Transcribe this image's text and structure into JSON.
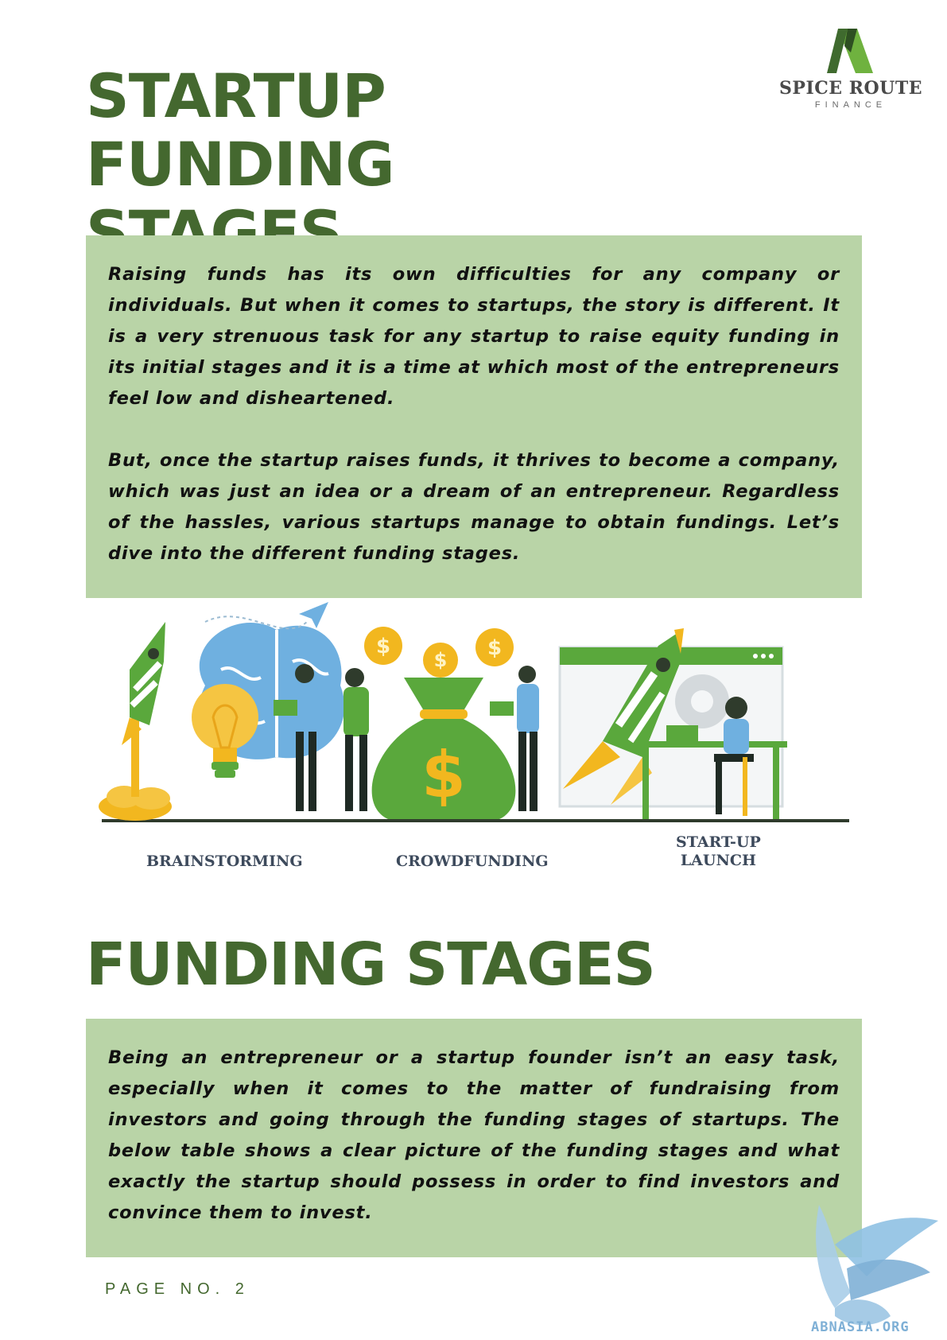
{
  "header": {
    "title_line1": "STARTUP FUNDING",
    "title_line2": "STAGES"
  },
  "logo": {
    "name": "SPICE ROUTE",
    "sub": "FINANCE",
    "icon": "triangle-a-logo-icon",
    "color": "#44682f"
  },
  "intro": {
    "paragraphs": [
      "Raising funds has its own difficulties for any company or individuals. But when it comes to startups, the story is different. It is a very strenuous task for any startup to raise equity funding in its initial stages and it is a time at which most of the entrepreneurs feel low and disheartened.",
      "But, once the startup raises funds, it thrives to become a company, which was just an idea or a dream of an entrepreneur. Regardless of the hassles, various startups manage to obtain fundings. Let’s dive into the different funding stages."
    ]
  },
  "illustration": {
    "captions": [
      "BRAINSTORMING",
      "CROWDFUNDING",
      "START-UP",
      "LAUNCH"
    ],
    "icons": [
      "rocket-icon",
      "brain-icon",
      "lightbulb-icon",
      "money-bag-icon",
      "coin-icon",
      "paper-plane-icon",
      "browser-window-icon",
      "gear-icon",
      "person-icon"
    ]
  },
  "section": {
    "title": "FUNDING STAGES",
    "paragraph": "Being an entrepreneur or a startup founder isn’t an easy task, especially when it comes to the matter of fundraising from investors and going through the funding stages of startups. The below table shows a clear picture of the funding stages and what exactly the startup should possess in order to find investors and convince them to invest."
  },
  "footer": {
    "page_no": "PAGE NO. 2"
  },
  "watermark": {
    "text": "ABNASIA.ORG",
    "icon": "griffin-icon"
  },
  "colors": {
    "heading": "#44682f",
    "panel": "#b9d4a7",
    "accent_green": "#5aa83c",
    "accent_yellow": "#f2b71f",
    "accent_blue": "#6fb0e0"
  }
}
